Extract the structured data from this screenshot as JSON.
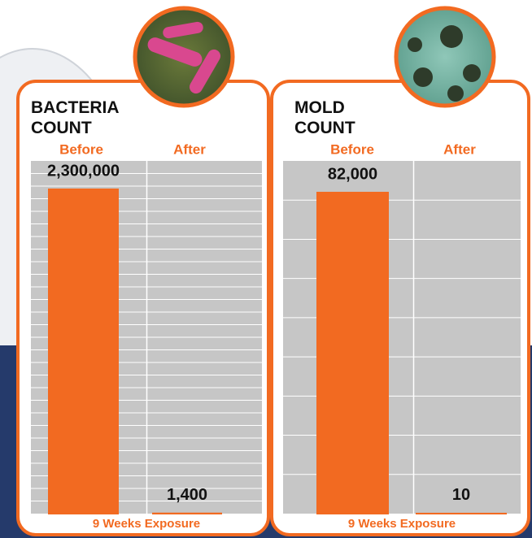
{
  "chart_data": [
    {
      "type": "bar",
      "title": "BACTERIA COUNT",
      "categories": [
        "Before",
        "After"
      ],
      "values": [
        2300000,
        1400
      ],
      "value_labels": [
        "2,300,000",
        "1,400"
      ],
      "xlabel": "9 Weeks Exposure",
      "color": "#f26a21"
    },
    {
      "type": "bar",
      "title": "MOLD COUNT",
      "categories": [
        "Before",
        "After"
      ],
      "values": [
        82000,
        10
      ],
      "value_labels": [
        "82,000",
        "10"
      ],
      "xlabel": "9 Weeks Exposure",
      "color": "#f26a21"
    }
  ]
}
